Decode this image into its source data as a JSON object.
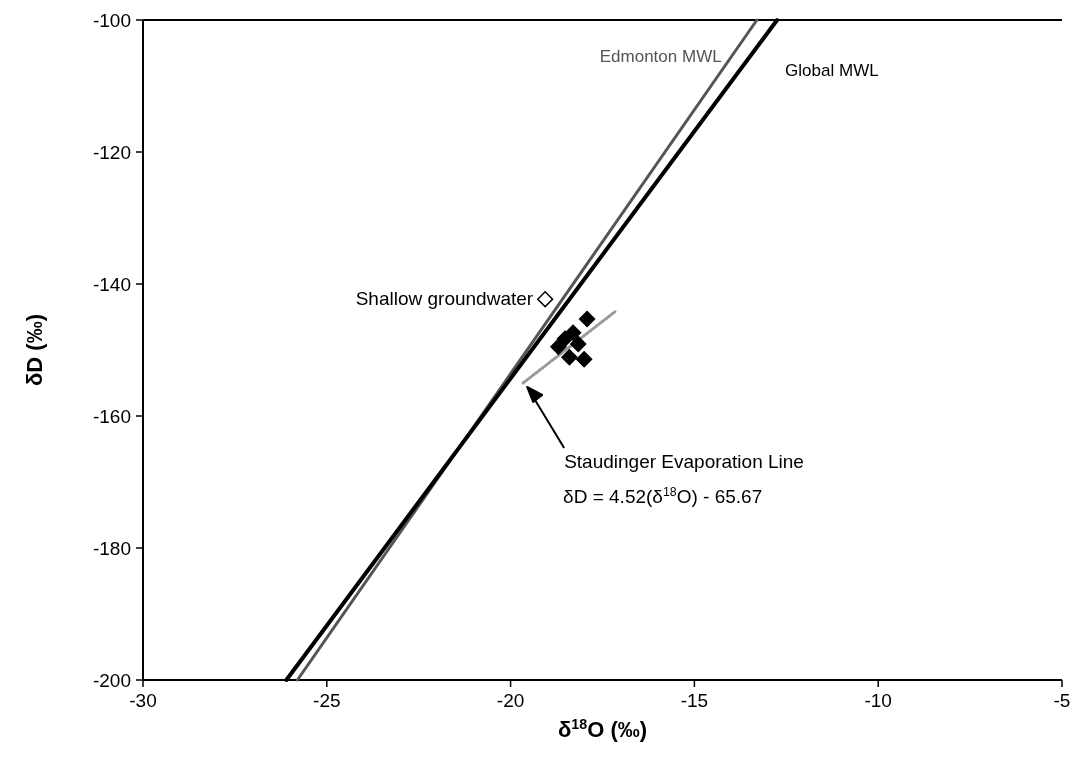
{
  "chart_data": {
    "type": "scatter",
    "xlabel": "δ$^{18}$O (‰)",
    "ylabel": "δD (‰)",
    "xlim": [
      -30,
      -5
    ],
    "xticks": [
      -30,
      -25,
      -20,
      -15,
      -10,
      -5
    ],
    "ylim": [
      -200,
      -100
    ],
    "yticks": [
      -200,
      -180,
      -160,
      -140,
      -120,
      -100
    ],
    "grid": false,
    "series": [
      {
        "type": "line",
        "name": "Edmonton MWL",
        "color": "#555555",
        "x": [
          -25.8,
          -13.3
        ],
        "values": [
          -200,
          -100
        ]
      },
      {
        "type": "line",
        "name": "Global MWL",
        "color": "#000000",
        "x": [
          -26.1,
          -12.75
        ],
        "values": [
          -200,
          -100
        ]
      },
      {
        "type": "line",
        "color": "#999999",
        "line_style": "dotted",
        "x": [
          -19.66,
          -17.16
        ],
        "values": [
          -155.0,
          -144.2
        ]
      },
      {
        "marker": "diamond",
        "name": "Shallow groundwater",
        "color": "#ffffff",
        "x": [
          -19.06
        ],
        "values": [
          -142.3
        ]
      },
      {
        "marker": "diamond",
        "color": "#000000",
        "x": [
          -17.92,
          -18.3,
          -18.52,
          -18.7,
          -18.16,
          -18.4,
          -18.0
        ],
        "values": [
          -145.3,
          -147.4,
          -148.3,
          -149.5,
          -149.1,
          -151.1,
          -151.4
        ]
      }
    ],
    "annotations": [
      {
        "text": "Staudinger Evaporation Line",
        "x": -19.55,
        "y": -155.6
      },
      "δD = 4.52(δ$^{18}$O) - 65.67"
    ]
  }
}
